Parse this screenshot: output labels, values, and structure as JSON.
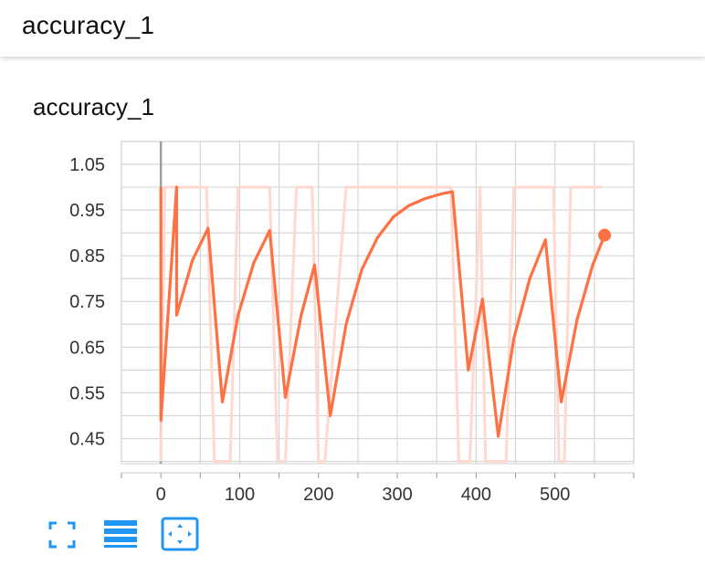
{
  "header": {
    "title": "accuracy_1"
  },
  "card": {
    "title": "accuracy_1"
  },
  "toolbar": {
    "icons": [
      "fullscreen-icon",
      "data-table-icon",
      "fit-domain-icon"
    ],
    "accent": "#2196f3"
  },
  "chart_data": {
    "type": "line",
    "title": "accuracy_1",
    "xlabel": "",
    "ylabel": "",
    "xlim": [
      -50,
      600
    ],
    "ylim": [
      0.395,
      1.1
    ],
    "x_ticks": [
      0,
      100,
      200,
      300,
      400,
      500
    ],
    "y_ticks": [
      0.45,
      0.55,
      0.65,
      0.75,
      0.85,
      0.95,
      1.05
    ],
    "grid": true,
    "colors": {
      "smoothed": "#ff7043",
      "raw": "#ffd9cf"
    },
    "series": [
      {
        "role": "raw",
        "x": [
          0,
          5,
          22,
          40,
          58,
          68,
          78,
          88,
          98,
          138,
          148,
          158,
          172,
          192,
          200,
          208,
          235,
          245,
          368,
          378,
          388,
          392,
          405,
          412,
          420,
          425,
          438,
          448,
          458,
          498,
          505,
          512,
          520,
          530,
          560
        ],
        "y": [
          0.4,
          1.0,
          1.0,
          1.0,
          1.0,
          0.4,
          0.4,
          0.4,
          1.0,
          1.0,
          0.4,
          0.4,
          1.0,
          1.0,
          0.4,
          0.4,
          1.0,
          1.0,
          1.0,
          0.4,
          0.4,
          0.4,
          1.0,
          0.4,
          0.4,
          0.4,
          0.4,
          1.0,
          1.0,
          1.0,
          0.4,
          0.4,
          1.0,
          1.0,
          1.0
        ]
      },
      {
        "role": "smoothed",
        "x": [
          0,
          0,
          20,
          20,
          40,
          60,
          78,
          98,
          118,
          138,
          158,
          178,
          195,
          215,
          235,
          255,
          275,
          295,
          315,
          335,
          355,
          370,
          390,
          408,
          428,
          448,
          468,
          488,
          508,
          528,
          548,
          563
        ],
        "y": [
          1.0,
          0.49,
          1.0,
          0.72,
          0.84,
          0.91,
          0.53,
          0.72,
          0.835,
          0.905,
          0.54,
          0.72,
          0.83,
          0.5,
          0.7,
          0.82,
          0.89,
          0.935,
          0.96,
          0.975,
          0.985,
          0.99,
          0.6,
          0.755,
          0.455,
          0.67,
          0.8,
          0.885,
          0.53,
          0.71,
          0.83,
          0.895
        ]
      }
    ]
  }
}
